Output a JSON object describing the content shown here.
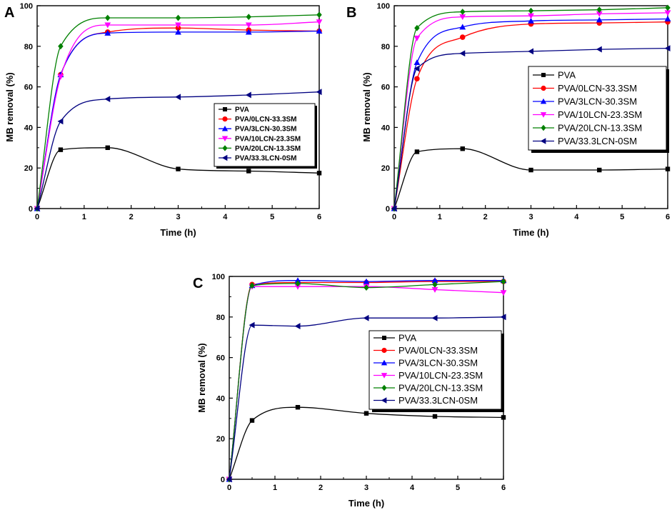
{
  "figure": {
    "description_free": true
  },
  "chart_data": [
    {
      "type": "scatter",
      "panel_label": "A",
      "xlabel": "Time (h)",
      "ylabel": "MB removal (%)",
      "xlim": [
        0,
        6
      ],
      "ylim": [
        0,
        100
      ],
      "xticks": [
        "0",
        "1",
        "2",
        "3",
        "4",
        "5",
        "6"
      ],
      "yticks": [
        "0",
        "20",
        "40",
        "60",
        "80",
        "100"
      ],
      "legend_position": "center-right",
      "x": [
        0,
        0.5,
        1.5,
        3,
        4.5,
        6
      ],
      "series": [
        {
          "name": "PVA",
          "color": "#000000",
          "marker": "square",
          "values": [
            0,
            29,
            30,
            19.5,
            18.5,
            17.5
          ]
        },
        {
          "name": "PVA/0LCN-33.3SM",
          "color": "#ff0000",
          "marker": "circle",
          "values": [
            0,
            66,
            87,
            89,
            88,
            87.5
          ]
        },
        {
          "name": "PVA/3LCN-30.3SM",
          "color": "#0000ff",
          "marker": "triangle-up",
          "values": [
            0,
            66,
            86.5,
            87,
            87,
            87.5
          ]
        },
        {
          "name": "PVA/10LCN-23.3SM",
          "color": "#ff00ff",
          "marker": "triangle-down",
          "values": [
            0,
            65,
            90.5,
            90.5,
            90.5,
            92
          ]
        },
        {
          "name": "PVA/20LCN-13.3SM",
          "color": "#008000",
          "marker": "diamond",
          "values": [
            0,
            80,
            94,
            94,
            94.5,
            95.5
          ]
        },
        {
          "name": "PVA/33.3LCN-0SM",
          "color": "#000080",
          "marker": "triangle-left",
          "values": [
            0,
            43,
            54,
            55,
            56,
            57.5
          ]
        }
      ]
    },
    {
      "type": "scatter",
      "panel_label": "B",
      "xlabel": "Time (h)",
      "ylabel": "MB removal (%)",
      "xlim": [
        0,
        6
      ],
      "ylim": [
        0,
        100
      ],
      "xticks": [
        "0",
        "1",
        "2",
        "3",
        "4",
        "5",
        "6"
      ],
      "yticks": [
        "0",
        "20",
        "40",
        "60",
        "80",
        "100"
      ],
      "legend_position": "center-right",
      "x": [
        0,
        0.5,
        1.5,
        3,
        4.5,
        6
      ],
      "series": [
        {
          "name": "PVA",
          "color": "#000000",
          "marker": "square",
          "values": [
            0,
            28,
            29.5,
            19,
            19,
            19.5
          ]
        },
        {
          "name": "PVA/0LCN-33.3SM",
          "color": "#ff0000",
          "marker": "circle",
          "values": [
            0,
            64,
            84.5,
            91,
            91.5,
            92
          ]
        },
        {
          "name": "PVA/3LCN-30.3SM",
          "color": "#0000ff",
          "marker": "triangle-up",
          "values": [
            0,
            72,
            89.5,
            92.5,
            93,
            93.5
          ]
        },
        {
          "name": "PVA/10LCN-23.3SM",
          "color": "#ff00ff",
          "marker": "triangle-down",
          "values": [
            0,
            84,
            94.5,
            95,
            96,
            96.5
          ]
        },
        {
          "name": "PVA/20LCN-13.3SM",
          "color": "#008000",
          "marker": "diamond",
          "values": [
            0,
            89,
            97,
            97.5,
            98,
            99
          ]
        },
        {
          "name": "PVA/33.3LCN-0SM",
          "color": "#000080",
          "marker": "triangle-left",
          "values": [
            0,
            69,
            76.5,
            77.5,
            78.5,
            79
          ]
        }
      ]
    },
    {
      "type": "scatter",
      "panel_label": "C",
      "xlabel": "Time (h)",
      "ylabel": "MB removal (%)",
      "xlim": [
        0,
        6
      ],
      "ylim": [
        0,
        100
      ],
      "xticks": [
        "0",
        "1",
        "2",
        "3",
        "4",
        "5",
        "6"
      ],
      "yticks": [
        "0",
        "20",
        "40",
        "60",
        "80",
        "100"
      ],
      "legend_position": "center-right",
      "x": [
        0,
        0.5,
        1.5,
        3,
        4.5,
        6
      ],
      "series": [
        {
          "name": "PVA",
          "color": "#000000",
          "marker": "square",
          "values": [
            0,
            29,
            35.5,
            32.5,
            31,
            30.5
          ]
        },
        {
          "name": "PVA/0LCN-33.3SM",
          "color": "#ff0000",
          "marker": "circle",
          "values": [
            0,
            96,
            97,
            97,
            97.5,
            97.5
          ]
        },
        {
          "name": "PVA/3LCN-30.3SM",
          "color": "#0000ff",
          "marker": "triangle-up",
          "values": [
            0,
            95.5,
            98,
            97.5,
            98,
            98
          ]
        },
        {
          "name": "PVA/10LCN-23.3SM",
          "color": "#ff00ff",
          "marker": "triangle-down",
          "values": [
            0,
            95,
            95,
            95,
            93.5,
            92
          ]
        },
        {
          "name": "PVA/20LCN-13.3SM",
          "color": "#008000",
          "marker": "diamond",
          "values": [
            0,
            95.5,
            96.5,
            94.5,
            96,
            97.5
          ]
        },
        {
          "name": "PVA/33.3LCN-0SM",
          "color": "#000080",
          "marker": "triangle-left",
          "values": [
            0,
            76,
            75.5,
            79.5,
            79.5,
            80
          ]
        }
      ]
    }
  ]
}
